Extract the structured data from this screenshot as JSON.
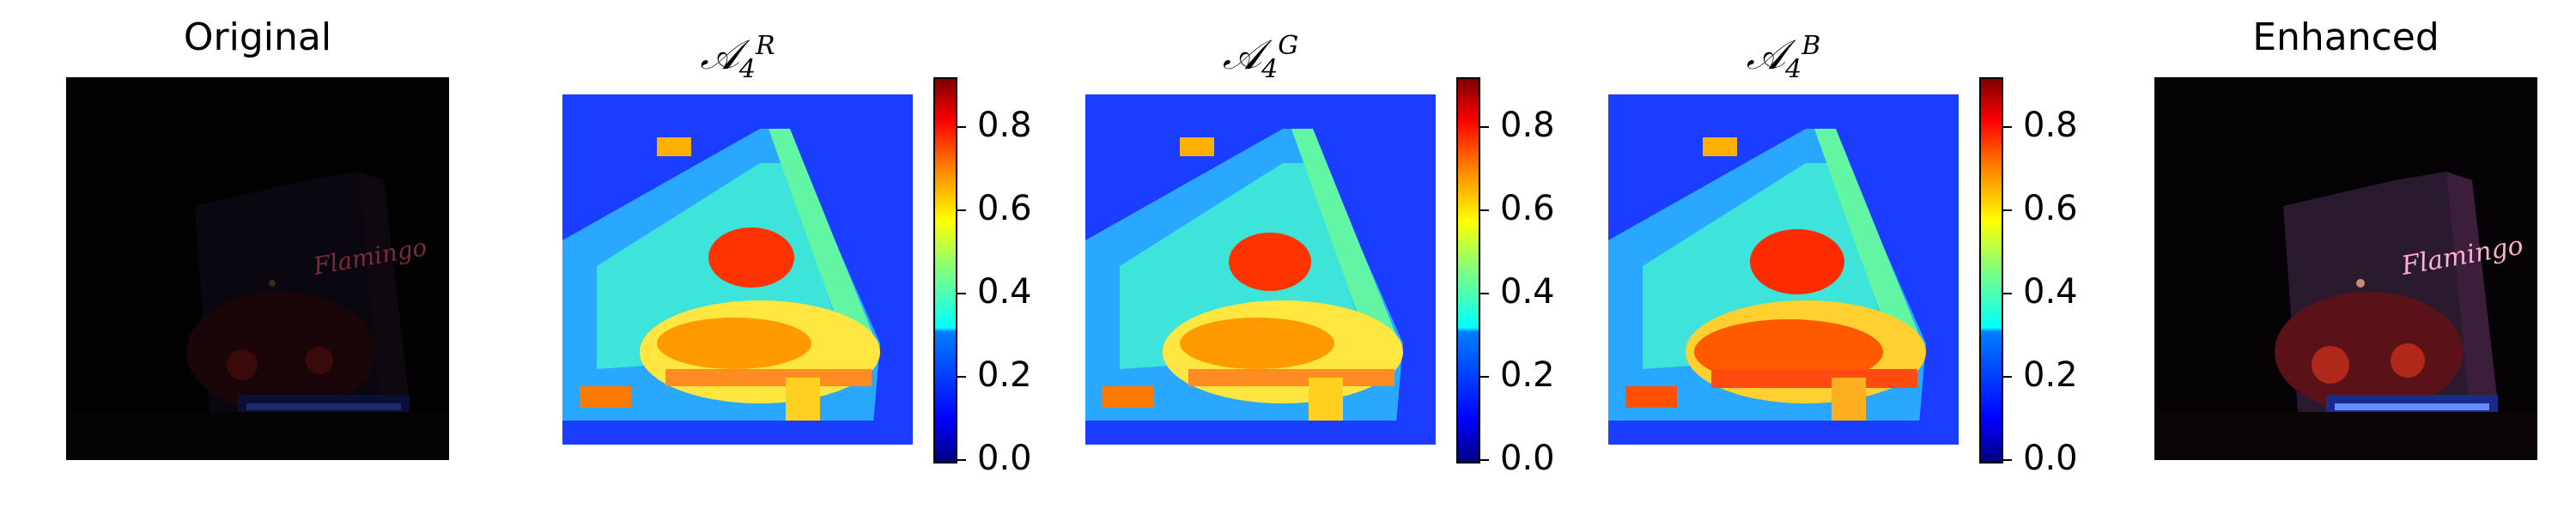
{
  "panels": {
    "original": {
      "title": "Original"
    },
    "map_r": {
      "title_base": "𝒜",
      "title_sub": "4",
      "title_sup": "R"
    },
    "map_g": {
      "title_base": "𝒜",
      "title_sub": "4",
      "title_sup": "G"
    },
    "map_b": {
      "title_base": "𝒜",
      "title_sub": "4",
      "title_sup": "B"
    },
    "enhanced": {
      "title": "Enhanced"
    }
  },
  "photo_text": "Flamingo",
  "colorbar": {
    "colormap": "jet",
    "range": [
      0.0,
      0.92
    ],
    "ticks": [
      "0.0",
      "0.2",
      "0.4",
      "0.6",
      "0.8"
    ],
    "tick_values": [
      0.0,
      0.2,
      0.4,
      0.6,
      0.8
    ]
  },
  "colors": {
    "low": "#00007f",
    "mid": "#7fff7f",
    "high": "#7f0000"
  }
}
